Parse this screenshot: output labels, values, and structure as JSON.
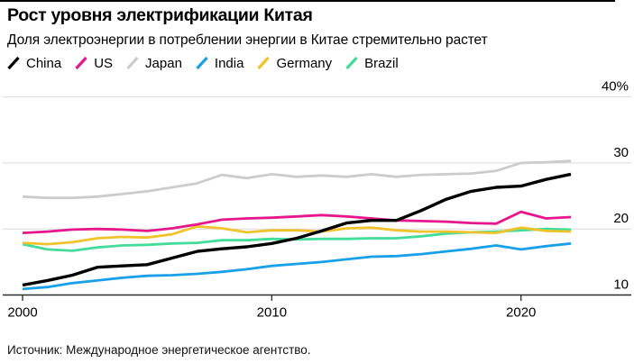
{
  "chart_data": {
    "type": "line",
    "title": "Рост уровня электрификации Китая",
    "subtitle": "Доля электроэнергии в потреблении энергии в Китае стремительно растет",
    "source": "Источник: Международное энергетическое агентство.",
    "grid": "horizontal",
    "legend_position": "top",
    "axis_side": "right",
    "x_range": [
      2000,
      2022
    ],
    "ylim": [
      10,
      40
    ],
    "x": [
      2000,
      2001,
      2002,
      2003,
      2004,
      2005,
      2006,
      2007,
      2008,
      2009,
      2010,
      2011,
      2012,
      2013,
      2014,
      2015,
      2016,
      2017,
      2018,
      2019,
      2020,
      2021,
      2022
    ],
    "x_ticks": [
      {
        "value": 2000,
        "label": "2000"
      },
      {
        "value": 2010,
        "label": "2010"
      },
      {
        "value": 2020,
        "label": "2020"
      }
    ],
    "y_ticks": [
      {
        "value": 10,
        "label": "10"
      },
      {
        "value": 20,
        "label": "20"
      },
      {
        "value": 30,
        "label": "30"
      },
      {
        "value": 40,
        "label": "40%"
      }
    ],
    "series": [
      {
        "name": "China",
        "color": "#000000",
        "values": [
          11.5,
          12.2,
          13.0,
          14.2,
          14.4,
          14.6,
          15.6,
          16.6,
          17.0,
          17.3,
          17.8,
          18.6,
          19.7,
          20.9,
          21.3,
          21.3,
          22.8,
          24.5,
          25.7,
          26.3,
          26.5,
          27.5,
          28.3
        ]
      },
      {
        "name": "US",
        "color": "#e6178c",
        "values": [
          19.4,
          19.6,
          19.9,
          20.0,
          19.9,
          19.7,
          20.1,
          20.7,
          21.4,
          21.6,
          21.7,
          21.9,
          22.1,
          21.9,
          21.6,
          21.3,
          21.2,
          21.1,
          20.9,
          20.8,
          22.6,
          21.6,
          21.8
        ]
      },
      {
        "name": "Japan",
        "color": "#cccccc",
        "values": [
          24.9,
          24.7,
          24.7,
          24.9,
          25.3,
          25.7,
          26.3,
          26.9,
          28.2,
          27.7,
          28.3,
          27.9,
          28.1,
          27.9,
          28.3,
          27.9,
          28.2,
          28.3,
          28.4,
          28.8,
          30.0,
          30.1,
          30.3
        ]
      },
      {
        "name": "India",
        "color": "#18a0e8",
        "values": [
          10.9,
          11.2,
          11.8,
          12.2,
          12.6,
          12.9,
          13.0,
          13.2,
          13.5,
          13.9,
          14.4,
          14.7,
          15.0,
          15.4,
          15.8,
          15.9,
          16.2,
          16.6,
          17.0,
          17.5,
          16.9,
          17.4,
          17.8
        ]
      },
      {
        "name": "Germany",
        "color": "#f0c32c",
        "values": [
          17.9,
          17.7,
          18.0,
          18.6,
          18.8,
          18.7,
          19.2,
          20.4,
          20.1,
          19.5,
          19.8,
          19.8,
          19.6,
          20.1,
          20.2,
          19.8,
          19.6,
          19.6,
          19.5,
          19.4,
          20.2,
          19.7,
          19.6
        ]
      },
      {
        "name": "Brazil",
        "color": "#43dc9b",
        "values": [
          17.7,
          16.9,
          16.7,
          17.2,
          17.5,
          17.6,
          17.8,
          17.9,
          18.3,
          18.3,
          18.5,
          18.4,
          18.5,
          18.5,
          18.6,
          18.6,
          18.9,
          19.3,
          19.5,
          19.6,
          19.8,
          20.0,
          19.9
        ]
      }
    ]
  }
}
